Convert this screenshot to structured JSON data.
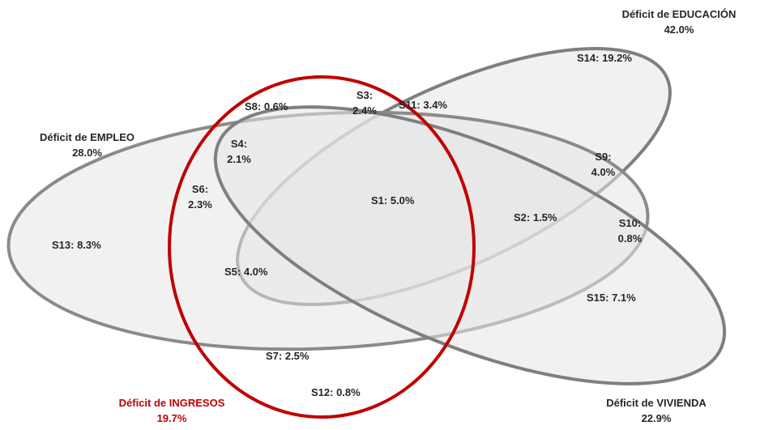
{
  "sets": {
    "educacion": {
      "name": "Déficit de EDUCACIÓN",
      "value": "42.0%"
    },
    "empleo": {
      "name": "Déficit de EMPLEO",
      "value": "28.0%"
    },
    "vivienda": {
      "name": "Déficit de VIVIENDA",
      "value": "22.9%"
    },
    "ingresos": {
      "name": "Déficit de INGRESOS",
      "value": "19.7%"
    }
  },
  "colors": {
    "ellipse_fill": "#e6e6e6",
    "ellipse_stroke": "#7f7f7f",
    "ingresos_stroke": "#c00000",
    "ingresos_label": "#c00000",
    "text": "#262626"
  },
  "segments": {
    "s1": "S1: 5.0%",
    "s2": "S2: 1.5%",
    "s3a": "S3:",
    "s3b": "2.4%",
    "s4a": "S4:",
    "s4b": "2.1%",
    "s5": "S5: 4.0%",
    "s6a": "S6:",
    "s6b": "2.3%",
    "s7": "S7: 2.5%",
    "s8": "S8: 0.6%",
    "s9a": "S9:",
    "s9b": "4.0%",
    "s10a": "S10:",
    "s10b": "0.8%",
    "s11": "S11: 3.4%",
    "s12": "S12: 0.8%",
    "s13": "S13: 8.3%",
    "s14": "S14: 19.2%",
    "s15": "S15: 7.1%"
  }
}
